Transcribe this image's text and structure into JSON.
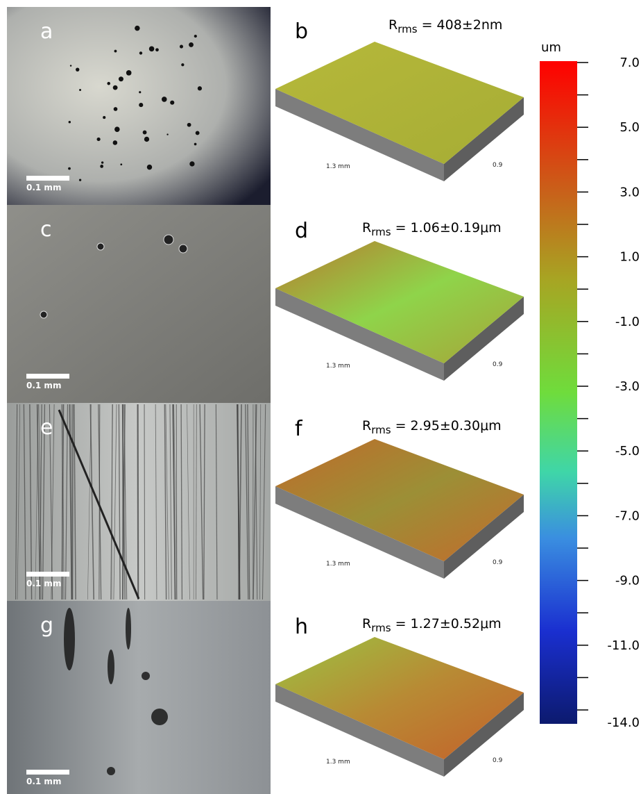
{
  "panels": [
    {
      "letter": "a",
      "scale_bar": "0.1 mm"
    },
    {
      "letter": "b",
      "r": "R",
      "sub": "rms",
      "value": " = 408±2nm",
      "x_label": "1.3 mm",
      "y_label": "0.9"
    },
    {
      "letter": "c",
      "scale_bar": "0.1 mm"
    },
    {
      "letter": "d",
      "r": "R",
      "sub": "rms",
      "value": " = 1.06±0.19μm",
      "x_label": "1.3 mm",
      "y_label": "0.9"
    },
    {
      "letter": "e",
      "scale_bar": "0.1 mm"
    },
    {
      "letter": "f",
      "r": "R",
      "sub": "rms",
      "value": " = 2.95±0.30μm",
      "x_label": "1.3 mm",
      "y_label": "0.9"
    },
    {
      "letter": "g",
      "scale_bar": "0.1 mm"
    },
    {
      "letter": "h",
      "r": "R",
      "sub": "rms",
      "value": " = 1.27±0.52μm",
      "x_label": "1.3 mm",
      "y_label": "0.9"
    }
  ],
  "colorbar": {
    "unit": "um",
    "labels": [
      "7.0",
      "5.0",
      "3.0",
      "1.0",
      "-1.0",
      "-3.0",
      "-5.0",
      "-7.0",
      "-9.0",
      "-11.0",
      "-14.0"
    ]
  }
}
